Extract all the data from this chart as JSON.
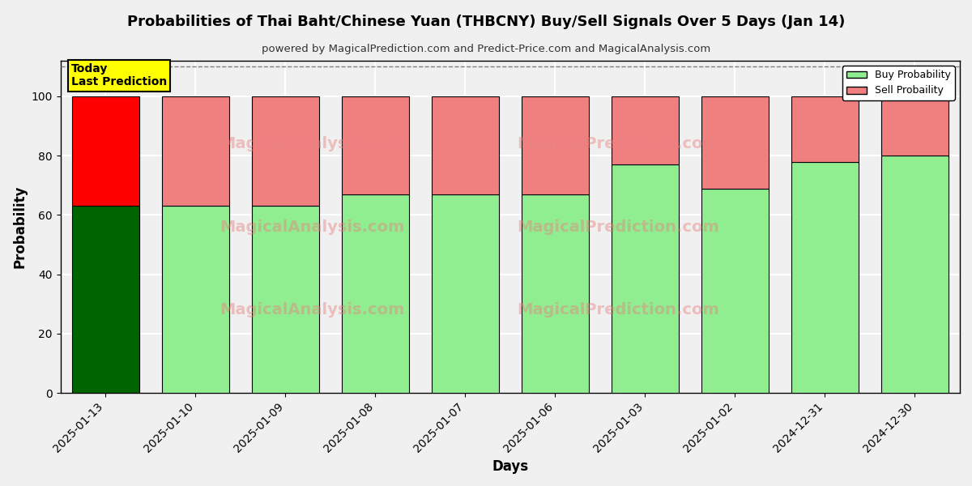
{
  "title": "Probabilities of Thai Baht/Chinese Yuan (THBCNY) Buy/Sell Signals Over 5 Days (Jan 14)",
  "subtitle": "powered by MagicalPrediction.com and Predict-Price.com and MagicalAnalysis.com",
  "xlabel": "Days",
  "ylabel": "Probability",
  "categories": [
    "2025-01-13",
    "2025-01-10",
    "2025-01-09",
    "2025-01-08",
    "2025-01-07",
    "2025-01-06",
    "2025-01-03",
    "2025-01-02",
    "2024-12-31",
    "2024-12-30"
  ],
  "buy_values": [
    63,
    63,
    63,
    67,
    67,
    67,
    77,
    69,
    78,
    80
  ],
  "sell_values": [
    37,
    37,
    37,
    33,
    33,
    33,
    23,
    31,
    22,
    20
  ],
  "today_buy_color": "#006400",
  "today_sell_color": "#FF0000",
  "buy_color": "#90EE90",
  "sell_color": "#F08080",
  "bar_edge_color": "#000000",
  "ylim": [
    0,
    112
  ],
  "yticks": [
    0,
    20,
    40,
    60,
    80,
    100
  ],
  "dashed_line_y": 110,
  "annotation_text": "Today\nLast Prediction",
  "annotation_bg": "#FFFF00",
  "background_color": "#f0f0f0",
  "grid_color": "#ffffff",
  "legend_buy_label": "Buy Probability",
  "legend_sell_label": "Sell Probaility",
  "watermark_color": "#e88080",
  "watermark_alpha": 0.45
}
